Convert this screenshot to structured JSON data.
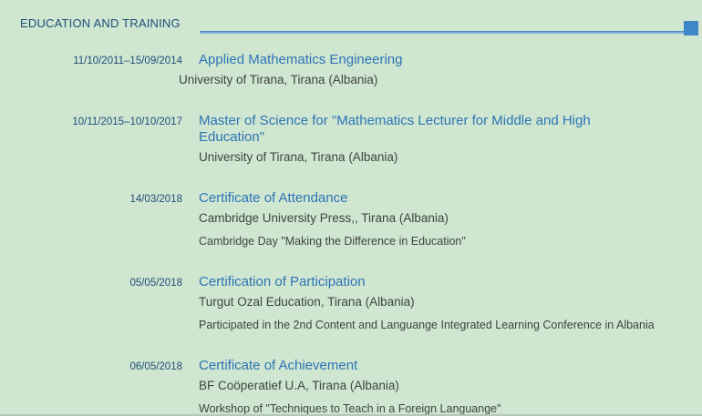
{
  "colors": {
    "background": "#cfe6d1",
    "header_text": "#1f4e79",
    "entry_title": "#2e74b5",
    "body_text": "#3f4540",
    "rule_line": "#4e88bc",
    "rule_square": "#3e86c6"
  },
  "section": {
    "header": "EDUCATION AND TRAINING"
  },
  "entries": [
    {
      "date": "11/10/2011–15/09/2014",
      "title": "Applied Mathematics Engineering",
      "organisation": "University of Tirana, Tirana (Albania)"
    },
    {
      "date": "10/11/2015–10/10/2017",
      "title": "Master of Science for \"Mathematics Lecturer for Middle and High Education\"",
      "organisation": "University of Tirana, Tirana (Albania)"
    },
    {
      "date": "14/03/2018",
      "title": "Certificate of Attendance",
      "organisation": "Cambridge University Press,, Tirana (Albania)",
      "description": "Cambridge Day \"Making the Difference in Education\""
    },
    {
      "date": "05/05/2018",
      "title": "Certification of Participation",
      "organisation": "Turgut Ozal Education, Tirana (Albania)",
      "description": "Participated in the 2nd Content and Languange Integrated Learning Conference in Albania"
    },
    {
      "date": "06/05/2018",
      "title": "Certificate of Achievement",
      "organisation": "BF Coöperatief U.A, Tirana (Albania)",
      "description": "Workshop of \"Techniques to Teach in a Foreign Languange\""
    }
  ]
}
